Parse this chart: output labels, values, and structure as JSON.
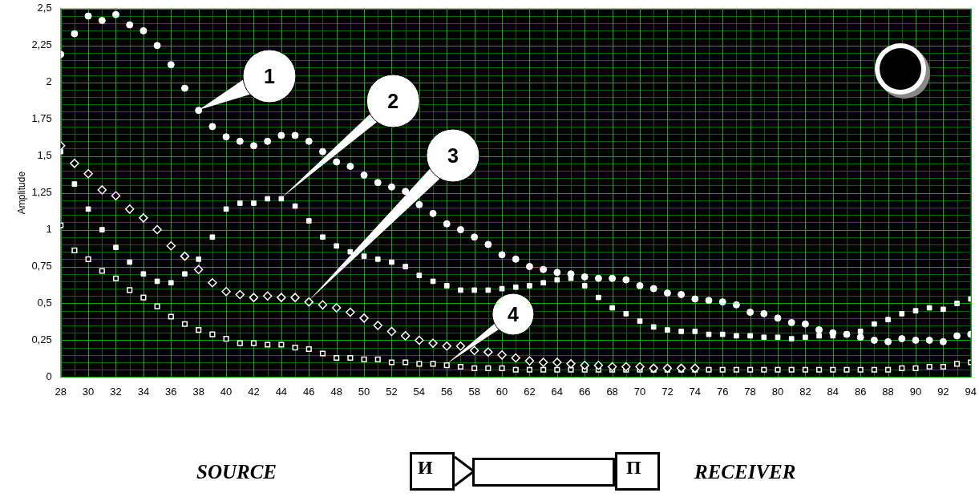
{
  "chart_data": {
    "type": "scatter",
    "ylabel": "Amplitude",
    "xlim": [
      28,
      94
    ],
    "xticks": [
      28,
      30,
      32,
      34,
      36,
      38,
      40,
      42,
      44,
      46,
      48,
      50,
      52,
      54,
      56,
      58,
      60,
      62,
      64,
      66,
      68,
      70,
      72,
      74,
      76,
      78,
      80,
      82,
      84,
      86,
      88,
      90,
      92,
      94
    ],
    "ylim": [
      0,
      2.5
    ],
    "yticks": [
      0,
      {
        "value": 0.25,
        "label": "0,25"
      },
      {
        "value": 0.5,
        "label": "0,5"
      },
      {
        "value": 0.75,
        "label": "0,75"
      },
      1,
      {
        "value": 1.25,
        "label": "1,25"
      },
      {
        "value": 1.5,
        "label": "1,5"
      },
      {
        "value": 1.75,
        "label": "1,75"
      },
      2,
      {
        "value": 2.25,
        "label": "2,25"
      },
      {
        "value": 2.5,
        "label": "2,5"
      }
    ],
    "grid": true,
    "x": [
      28,
      29,
      30,
      31,
      32,
      33,
      34,
      35,
      36,
      37,
      38,
      39,
      40,
      41,
      42,
      43,
      44,
      45,
      46,
      47,
      48,
      49,
      50,
      51,
      52,
      53,
      54,
      55,
      56,
      57,
      58,
      59,
      60,
      61,
      62,
      63,
      64,
      65,
      66,
      67,
      68,
      69,
      70,
      71,
      72,
      73,
      74,
      75,
      76,
      77,
      78,
      79,
      80,
      81,
      82,
      83,
      84,
      85,
      86,
      87,
      88,
      89,
      90,
      91,
      92,
      93,
      94
    ],
    "series": [
      {
        "color": "#ffffff",
        "marker": "circle",
        "values": [
          2.19,
          2.33,
          2.45,
          2.42,
          2.46,
          2.39,
          2.35,
          2.25,
          2.12,
          1.96,
          1.81,
          1.7,
          1.63,
          1.6,
          1.57,
          1.6,
          1.64,
          1.64,
          1.6,
          1.53,
          1.46,
          1.43,
          1.37,
          1.32,
          1.29,
          1.26,
          1.17,
          1.11,
          1.04,
          1.0,
          0.95,
          0.9,
          0.83,
          0.8,
          0.75,
          0.73,
          0.71,
          0.7,
          0.68,
          0.67,
          0.67,
          0.66,
          0.62,
          0.6,
          0.57,
          0.56,
          0.53,
          0.52,
          0.51,
          0.49,
          0.44,
          0.43,
          0.4,
          0.37,
          0.36,
          0.32,
          0.3,
          0.29,
          0.27,
          0.25,
          0.24,
          0.26,
          0.25,
          0.25,
          0.24,
          0.28,
          0.29
        ]
      },
      {
        "color": "#ffffff",
        "marker": "square",
        "values": [
          1.53,
          1.31,
          1.14,
          1.0,
          0.88,
          0.78,
          0.7,
          0.65,
          0.64,
          0.7,
          0.8,
          0.95,
          1.14,
          1.18,
          1.18,
          1.21,
          1.21,
          1.16,
          1.06,
          0.95,
          0.89,
          0.85,
          0.82,
          0.8,
          0.78,
          0.75,
          0.69,
          0.65,
          0.62,
          0.59,
          0.59,
          0.59,
          0.6,
          0.61,
          0.62,
          0.64,
          0.66,
          0.67,
          0.62,
          0.54,
          0.47,
          0.43,
          0.38,
          0.34,
          0.32,
          0.31,
          0.31,
          0.29,
          0.29,
          0.28,
          0.28,
          0.27,
          0.27,
          0.26,
          0.27,
          0.28,
          0.28,
          0.29,
          0.31,
          0.36,
          0.39,
          0.43,
          0.45,
          0.47,
          0.46,
          0.5,
          0.53
        ]
      },
      {
        "color": "#ffffff",
        "marker": "diamond",
        "values": [
          1.57,
          1.45,
          1.38,
          1.27,
          1.23,
          1.14,
          1.08,
          1.0,
          0.89,
          0.82,
          0.73,
          0.64,
          0.58,
          0.56,
          0.54,
          0.55,
          0.54,
          0.54,
          0.51,
          0.49,
          0.47,
          0.44,
          0.4,
          0.35,
          0.31,
          0.28,
          0.25,
          0.23,
          0.21,
          0.21,
          0.18,
          0.17,
          0.15,
          0.13,
          0.11,
          0.1,
          0.1,
          0.09,
          0.08,
          0.08,
          0.07,
          0.07,
          0.07,
          0.06,
          0.06,
          0.06,
          0.06,
          null,
          null,
          null,
          null,
          null,
          null,
          null,
          null,
          null,
          null,
          null,
          null,
          null,
          null,
          null,
          null,
          null,
          null,
          null,
          null
        ]
      },
      {
        "color": "#ffffff",
        "marker": "square",
        "values": [
          1.03,
          0.86,
          0.8,
          0.72,
          0.67,
          0.59,
          0.54,
          0.48,
          0.41,
          0.36,
          0.32,
          0.29,
          0.26,
          0.23,
          0.23,
          0.22,
          0.22,
          0.2,
          0.19,
          0.16,
          0.13,
          0.13,
          0.12,
          0.12,
          0.1,
          0.1,
          0.09,
          0.09,
          0.08,
          0.07,
          0.06,
          0.06,
          0.06,
          0.05,
          0.05,
          0.05,
          0.05,
          0.05,
          0.05,
          0.05,
          0.05,
          0.05,
          0.05,
          0.05,
          0.05,
          0.05,
          0.05,
          0.05,
          0.05,
          0.05,
          0.05,
          0.05,
          0.05,
          0.05,
          0.05,
          0.05,
          0.05,
          0.05,
          0.05,
          0.05,
          0.05,
          0.06,
          0.06,
          0.07,
          0.07,
          0.09,
          0.1
        ]
      }
    ],
    "annotations": [
      "1",
      "2",
      "3",
      "4",
      "SOURCE",
      "И",
      "П",
      "RECEIVER"
    ]
  }
}
